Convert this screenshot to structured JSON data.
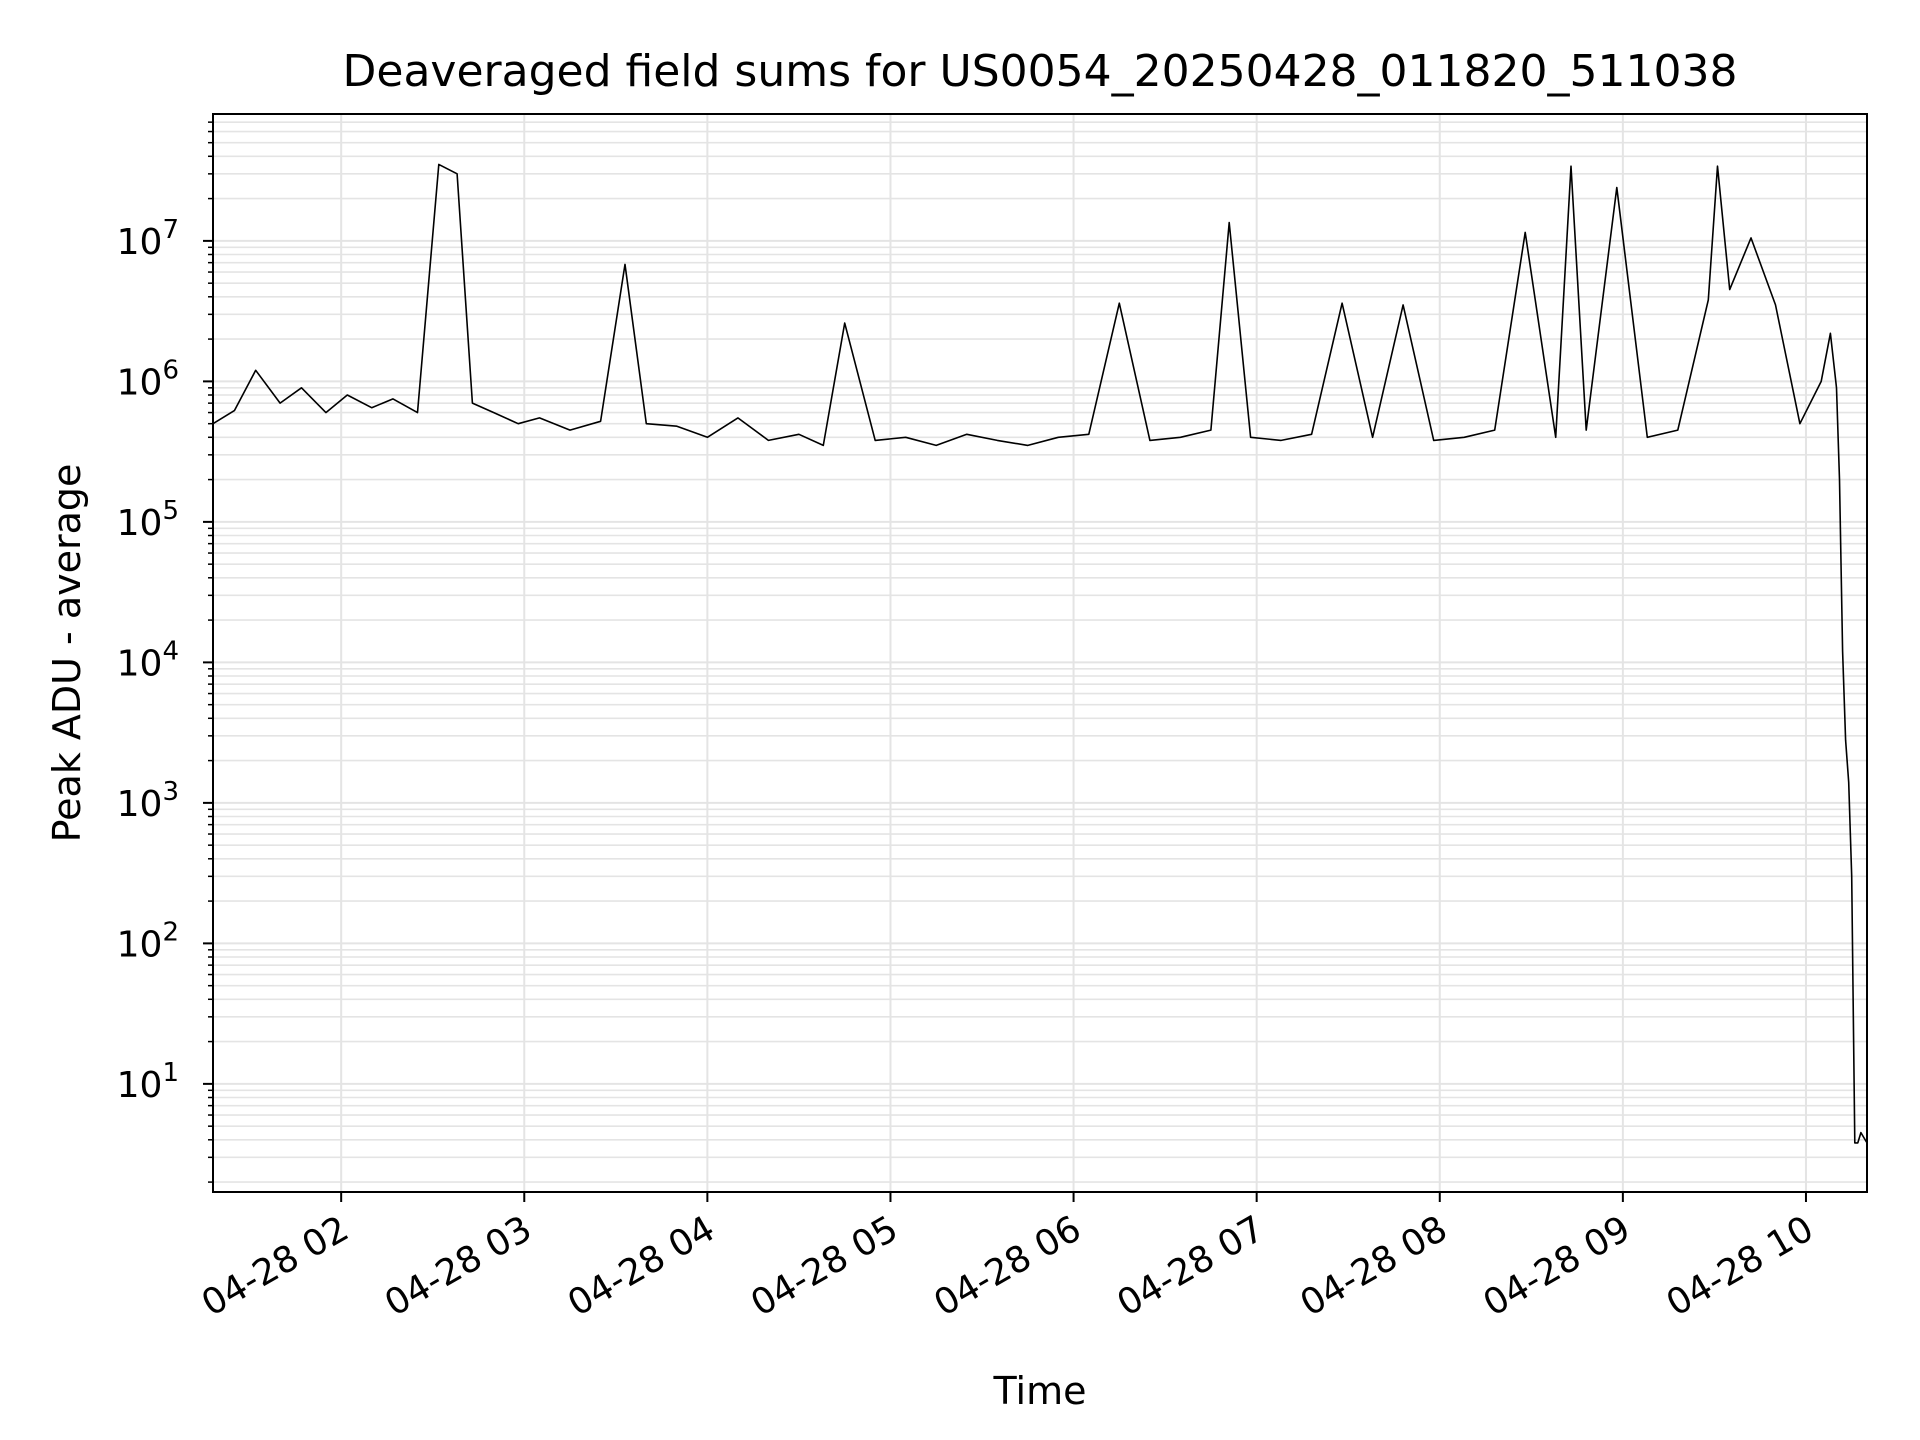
{
  "chart_data": {
    "type": "line",
    "title": "Deaveraged field sums for US0054_20250428_011820_511038",
    "xlabel": "Time",
    "ylabel": "Peak ADU - average",
    "x_scale": "time",
    "y_scale": "log",
    "xlim": [
      "2025-04-28 01:18",
      "2025-04-28 10:20"
    ],
    "ylim": [
      1.7,
      80000000
    ],
    "grid": true,
    "line_color": "#000000",
    "grid_color": "#e4e4e4",
    "x_tick_labels": [
      "04-28 02",
      "04-28 03",
      "04-28 04",
      "04-28 05",
      "04-28 06",
      "04-28 07",
      "04-28 08",
      "04-28 09",
      "04-28 10"
    ],
    "x_tick_values": [
      "2025-04-28 02:00",
      "2025-04-28 03:00",
      "2025-04-28 04:00",
      "2025-04-28 05:00",
      "2025-04-28 06:00",
      "2025-04-28 07:00",
      "2025-04-28 08:00",
      "2025-04-28 09:00",
      "2025-04-28 10:00"
    ],
    "y_ticks": [
      {
        "value": 10,
        "base": "10",
        "exp": "1"
      },
      {
        "value": 100,
        "base": "10",
        "exp": "2"
      },
      {
        "value": 1000,
        "base": "10",
        "exp": "3"
      },
      {
        "value": 10000,
        "base": "10",
        "exp": "4"
      },
      {
        "value": 100000,
        "base": "10",
        "exp": "5"
      },
      {
        "value": 1000000,
        "base": "10",
        "exp": "6"
      },
      {
        "value": 10000000,
        "base": "10",
        "exp": "7"
      }
    ],
    "series": [
      {
        "x": [
          "2025-04-28 01:18",
          "2025-04-28 01:25",
          "2025-04-28 01:32",
          "2025-04-28 01:40",
          "2025-04-28 01:47",
          "2025-04-28 01:55",
          "2025-04-28 02:02",
          "2025-04-28 02:10",
          "2025-04-28 02:17",
          "2025-04-28 02:25",
          "2025-04-28 02:32",
          "2025-04-28 02:38",
          "2025-04-28 02:43",
          "2025-04-28 02:50",
          "2025-04-28 02:58",
          "2025-04-28 03:05",
          "2025-04-28 03:15",
          "2025-04-28 03:25",
          "2025-04-28 03:33",
          "2025-04-28 03:40",
          "2025-04-28 03:50",
          "2025-04-28 04:00",
          "2025-04-28 04:10",
          "2025-04-28 04:20",
          "2025-04-28 04:30",
          "2025-04-28 04:38",
          "2025-04-28 04:45",
          "2025-04-28 04:55",
          "2025-04-28 05:05",
          "2025-04-28 05:15",
          "2025-04-28 05:25",
          "2025-04-28 05:35",
          "2025-04-28 05:45",
          "2025-04-28 05:55",
          "2025-04-28 06:05",
          "2025-04-28 06:15",
          "2025-04-28 06:25",
          "2025-04-28 06:35",
          "2025-04-28 06:45",
          "2025-04-28 06:51",
          "2025-04-28 06:58",
          "2025-04-28 07:08",
          "2025-04-28 07:18",
          "2025-04-28 07:28",
          "2025-04-28 07:38",
          "2025-04-28 07:48",
          "2025-04-28 07:58",
          "2025-04-28 08:08",
          "2025-04-28 08:18",
          "2025-04-28 08:28",
          "2025-04-28 08:38",
          "2025-04-28 08:43",
          "2025-04-28 08:48",
          "2025-04-28 08:58",
          "2025-04-28 09:08",
          "2025-04-28 09:18",
          "2025-04-28 09:28",
          "2025-04-28 09:31",
          "2025-04-28 09:35",
          "2025-04-28 09:42",
          "2025-04-28 09:50",
          "2025-04-28 09:58",
          "2025-04-28 10:05",
          "2025-04-28 10:08",
          "2025-04-28 10:10",
          "2025-04-28 10:11",
          "2025-04-28 10:12",
          "2025-04-28 10:13",
          "2025-04-28 10:14",
          "2025-04-28 10:15",
          "2025-04-28 10:16",
          "2025-04-28 10:17",
          "2025-04-28 10:18",
          "2025-04-28 10:20"
        ],
        "values": [
          500000,
          620000,
          1200000,
          700000,
          900000,
          600000,
          800000,
          650000,
          750000,
          600000,
          35000000,
          30000000,
          700000,
          600000,
          500000,
          550000,
          450000,
          520000,
          6800000,
          500000,
          480000,
          400000,
          550000,
          380000,
          420000,
          350000,
          2600000,
          380000,
          400000,
          350000,
          420000,
          380000,
          350000,
          400000,
          420000,
          3600000,
          380000,
          400000,
          450000,
          13500000,
          400000,
          380000,
          420000,
          3600000,
          400000,
          3500000,
          380000,
          400000,
          450000,
          11500000,
          400000,
          34000000,
          450000,
          24000000,
          400000,
          450000,
          3800000,
          34000000,
          4500000,
          10500000,
          3500000,
          500000,
          1000000,
          2200000,
          900000,
          200000,
          12000,
          2800,
          1400,
          300,
          3.8,
          3.8,
          4.5,
          3.8
        ]
      }
    ]
  }
}
